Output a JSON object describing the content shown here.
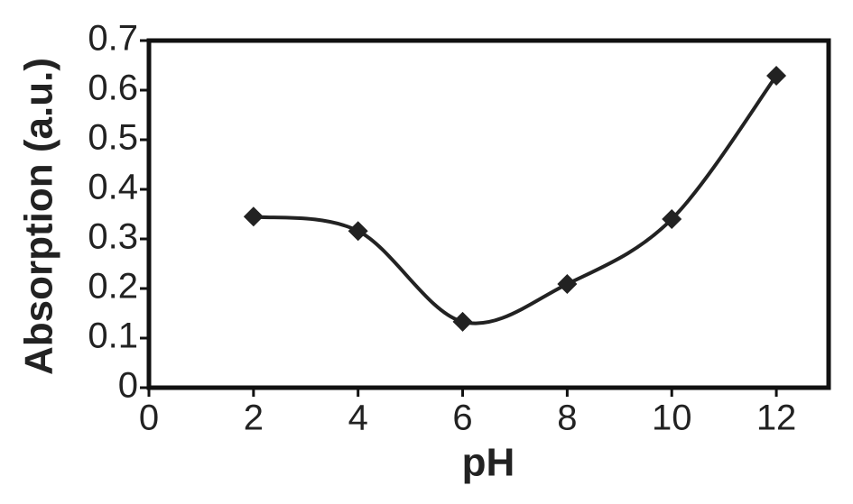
{
  "chart_data": {
    "type": "line",
    "x_label": "pH",
    "y_label": "Absorption (a.u.)",
    "series": [
      {
        "name": "Absorption",
        "color": "#222222",
        "x": [
          2,
          4,
          6,
          8,
          10,
          12
        ],
        "values": [
          0.345,
          0.316,
          0.133,
          0.209,
          0.34,
          0.629
        ]
      }
    ],
    "xlim": [
      0,
      13
    ],
    "xticks": [
      0,
      2,
      4,
      6,
      8,
      10,
      12
    ],
    "ylim": [
      0,
      0.7
    ],
    "yticks": [
      0,
      0.1,
      0.2,
      0.3,
      0.4,
      0.5,
      0.6,
      0.7
    ],
    "grid": false,
    "smooth": true,
    "marker": "diamond"
  }
}
